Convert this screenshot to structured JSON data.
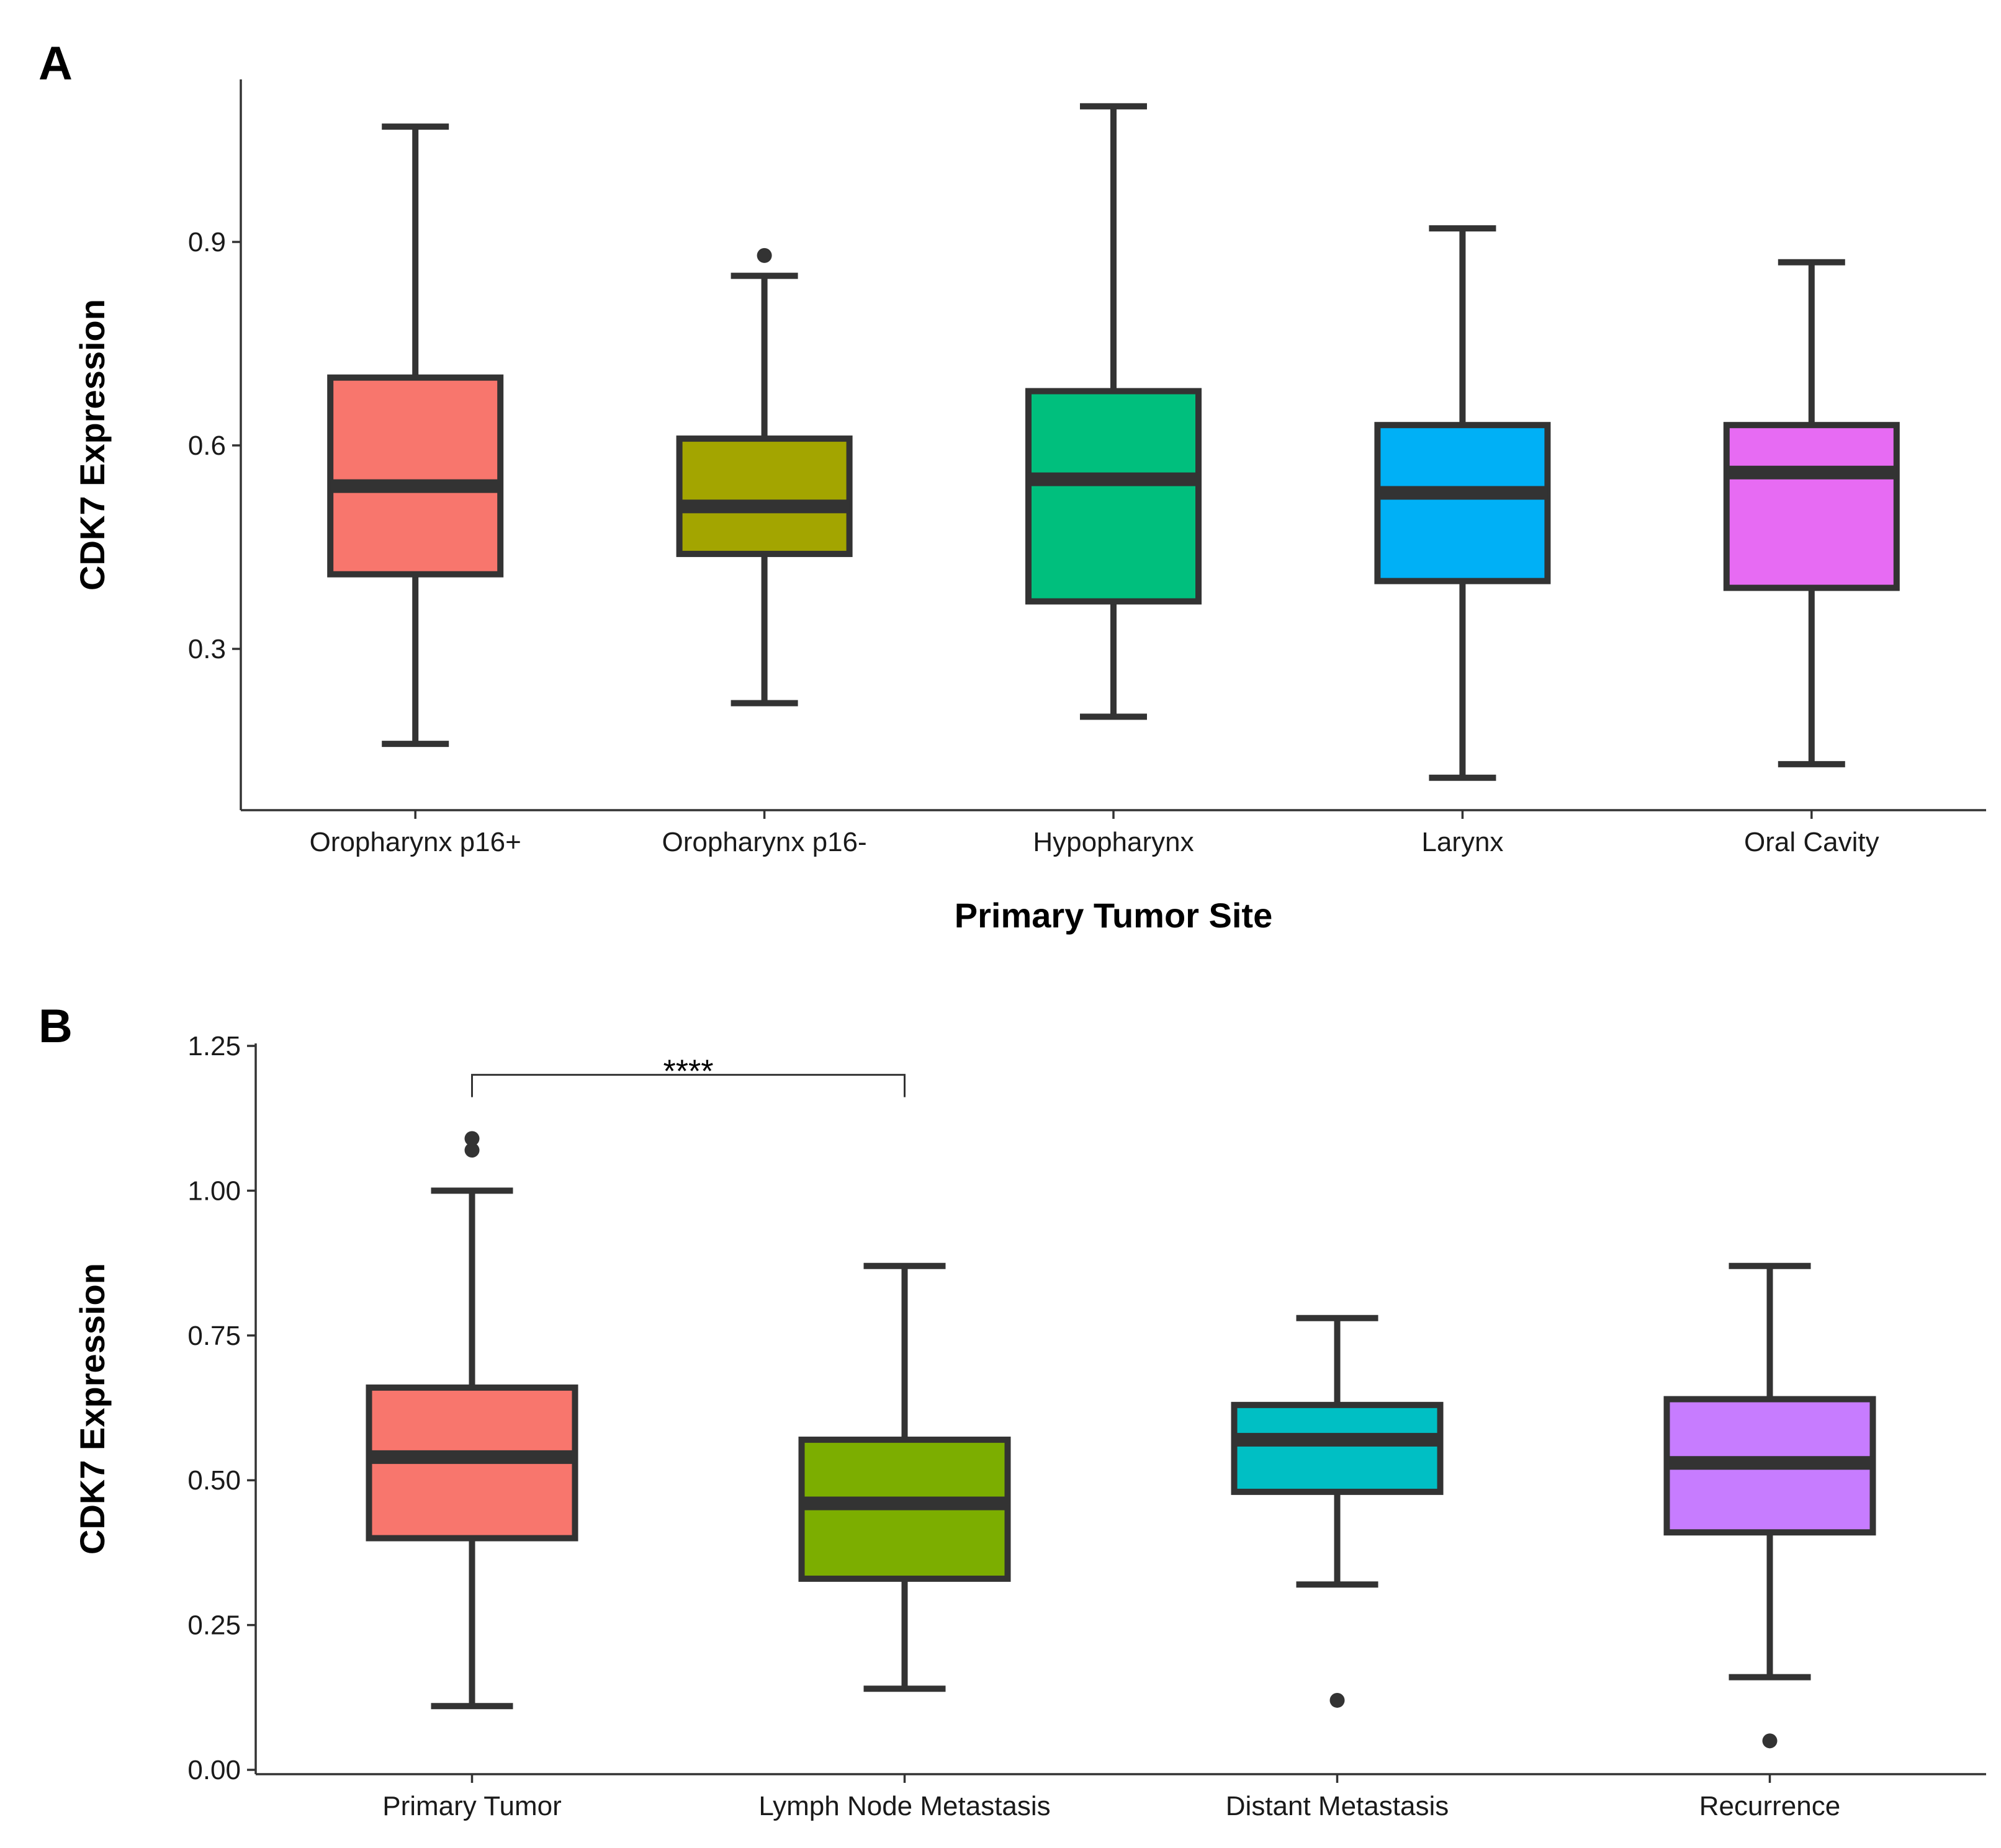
{
  "chart_data": [
    {
      "panel": "A",
      "type": "box",
      "xlabel": "Primary Tumor Site",
      "ylabel": "CDK7 Expression",
      "ylim": [
        0.06,
        1.16
      ],
      "yticks": [
        0.3,
        0.6,
        0.9
      ],
      "ytick_labels": [
        "0.3",
        "0.6",
        "0.9"
      ],
      "grid": false,
      "categories": [
        "Oropharynx p16+",
        "Oropharynx p16-",
        "Hypopharynx",
        "Larynx",
        "Oral Cavity"
      ],
      "boxes": [
        {
          "category": "Oropharynx p16+",
          "color": "#F8766D",
          "whisker_low": 0.16,
          "q1": 0.41,
          "median": 0.54,
          "q3": 0.7,
          "whisker_high": 1.07,
          "outliers": []
        },
        {
          "category": "Oropharynx p16-",
          "color": "#A3A500",
          "whisker_low": 0.22,
          "q1": 0.44,
          "median": 0.51,
          "q3": 0.61,
          "whisker_high": 0.85,
          "outliers": [
            0.88
          ]
        },
        {
          "category": "Hypopharynx",
          "color": "#00BF7D",
          "whisker_low": 0.2,
          "q1": 0.37,
          "median": 0.55,
          "q3": 0.68,
          "whisker_high": 1.1,
          "outliers": []
        },
        {
          "category": "Larynx",
          "color": "#00B0F6",
          "whisker_low": 0.11,
          "q1": 0.4,
          "median": 0.53,
          "q3": 0.63,
          "whisker_high": 0.92,
          "outliers": []
        },
        {
          "category": "Oral Cavity",
          "color": "#E76BF3",
          "whisker_low": 0.13,
          "q1": 0.39,
          "median": 0.56,
          "q3": 0.63,
          "whisker_high": 0.87,
          "outliers": []
        }
      ]
    },
    {
      "panel": "B",
      "type": "box",
      "xlabel": "",
      "ylabel": "CDK7 Expression",
      "ylim": [
        -0.01,
        1.25
      ],
      "yticks": [
        0.0,
        0.25,
        0.5,
        0.75,
        1.0,
        1.25
      ],
      "ytick_labels": [
        "0.00",
        "0.25",
        "0.50",
        "0.75",
        "1.00",
        "1.25"
      ],
      "grid": false,
      "categories": [
        "Primary Tumor",
        "Lymph Node Metastasis",
        "Distant Metastasis",
        "Recurrence"
      ],
      "boxes": [
        {
          "category": "Primary Tumor",
          "color": "#F8766D",
          "whisker_low": 0.11,
          "q1": 0.4,
          "median": 0.54,
          "q3": 0.66,
          "whisker_high": 1.0,
          "outliers": [
            1.07,
            1.09
          ]
        },
        {
          "category": "Lymph Node Metastasis",
          "color": "#7CAE00",
          "whisker_low": 0.14,
          "q1": 0.33,
          "median": 0.46,
          "q3": 0.57,
          "whisker_high": 0.87,
          "outliers": []
        },
        {
          "category": "Distant Metastasis",
          "color": "#00BFC4",
          "whisker_low": 0.32,
          "q1": 0.48,
          "median": 0.57,
          "q3": 0.63,
          "whisker_high": 0.78,
          "outliers": [
            0.12
          ]
        },
        {
          "category": "Recurrence",
          "color": "#C77CFF",
          "whisker_low": 0.16,
          "q1": 0.41,
          "median": 0.53,
          "q3": 0.64,
          "whisker_high": 0.87,
          "outliers": [
            0.05
          ]
        }
      ],
      "annotations": [
        {
          "type": "significance_bracket",
          "from": "Primary Tumor",
          "to": "Lymph Node Metastasis",
          "label": "****",
          "y": 1.2
        }
      ]
    }
  ]
}
